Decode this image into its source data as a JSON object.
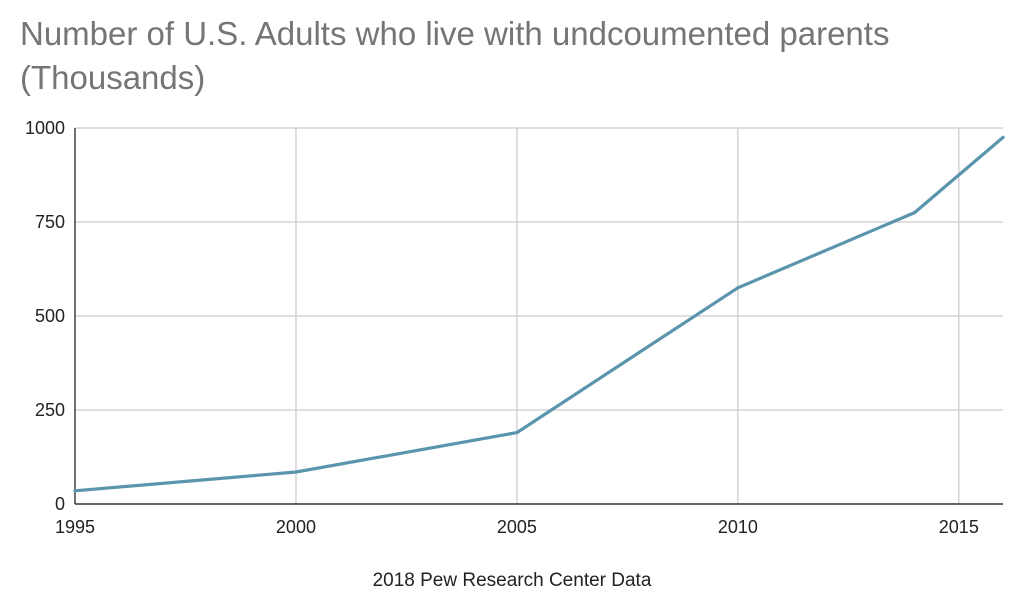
{
  "chart_data": {
    "type": "line",
    "title_lines": [
      "Number of U.S. Adults who live with undcoumented parents",
      "(Thousands)"
    ],
    "xlabel": "2018 Pew Research Center Data",
    "ylabel": "",
    "xlim": [
      1995,
      2016
    ],
    "ylim": [
      0,
      1000
    ],
    "x_ticks": [
      1995,
      2000,
      2005,
      2010,
      2015
    ],
    "y_ticks": [
      0,
      250,
      500,
      750,
      1000
    ],
    "grid": true,
    "series": [
      {
        "color": "#5b95ad",
        "points": [
          {
            "x": 1995,
            "y": 35
          },
          {
            "x": 2000,
            "y": 85
          },
          {
            "x": 2005,
            "y": 190
          },
          {
            "x": 2010,
            "y": 575
          },
          {
            "x": 2014,
            "y": 775
          },
          {
            "x": 2016,
            "y": 975
          }
        ]
      }
    ]
  }
}
